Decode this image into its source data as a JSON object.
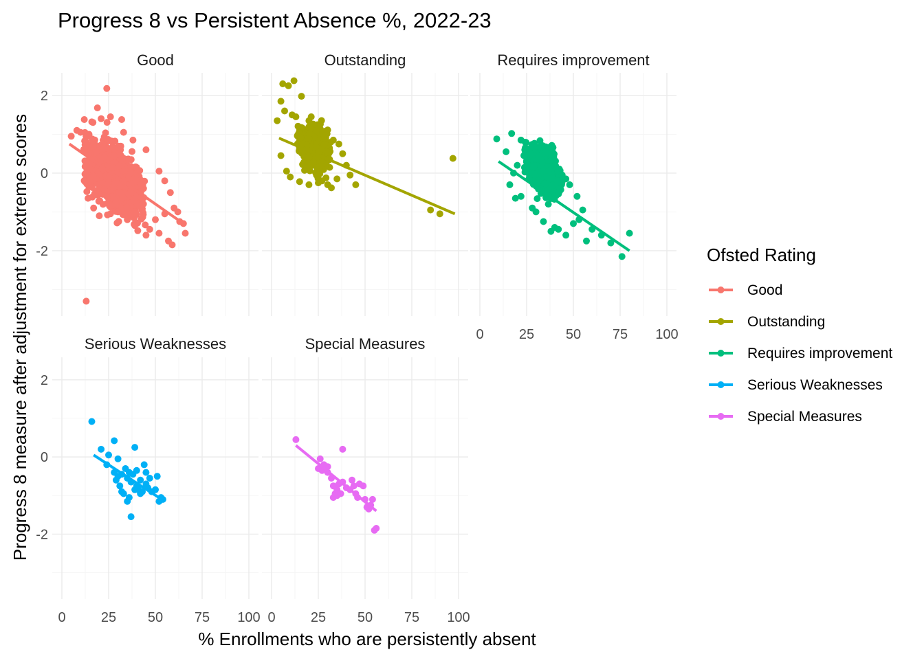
{
  "chart_data": {
    "type": "scatter",
    "title": "Progress 8 vs Persistent Absence %, 2022-23",
    "xlabel": "% Enrollments who are persistently absent",
    "ylabel": "Progress 8 measure after adjustment for extreme scores",
    "xlim": [
      0,
      100
    ],
    "ylim": [
      -3.4,
      2.3
    ],
    "x_ticks": [
      0,
      25,
      50,
      75,
      100
    ],
    "y_ticks": [
      -2,
      0,
      2
    ],
    "grid": true,
    "legend": {
      "title": "Ofsted Rating",
      "placement": "right",
      "entries": [
        "Good",
        "Outstanding",
        "Requires improvement",
        "Serious Weaknesses",
        "Special Measures"
      ]
    },
    "panels": [
      {
        "name": "Good",
        "color": "#F8766D",
        "trend": {
          "x0": 4,
          "y0": 0.75,
          "x1": 65,
          "y1": -1.3
        },
        "cloud": {
          "count": 1300,
          "x_range": [
            4,
            52
          ],
          "y_center_at_x0": 0.6,
          "slope": -0.03,
          "y_spread": 0.35,
          "seed": 11
        },
        "points": [
          [
            24,
            2.18
          ],
          [
            19,
            1.68
          ],
          [
            12,
            1.38
          ],
          [
            16,
            1.32
          ],
          [
            21,
            1.4
          ],
          [
            32,
            1.38
          ],
          [
            26,
            1.45
          ],
          [
            8,
            1.1
          ],
          [
            5,
            0.95
          ],
          [
            10,
            1.05
          ],
          [
            14,
            0.95
          ],
          [
            33,
            1.05
          ],
          [
            38,
            0.85
          ],
          [
            45,
            0.6
          ],
          [
            52,
            0.05
          ],
          [
            55,
            -0.2
          ],
          [
            58,
            -0.5
          ],
          [
            60,
            -0.9
          ],
          [
            62,
            -1.0
          ],
          [
            63,
            -1.25
          ],
          [
            65,
            -1.3
          ],
          [
            66,
            -1.55
          ],
          [
            57,
            -1.75
          ],
          [
            59,
            -1.85
          ],
          [
            52,
            -1.55
          ],
          [
            47,
            -1.45
          ],
          [
            45,
            -1.6
          ],
          [
            39,
            -1.35
          ],
          [
            35,
            -1.2
          ],
          [
            30,
            -1.0
          ],
          [
            26,
            -1.05
          ],
          [
            20,
            -1.1
          ],
          [
            17,
            -0.9
          ],
          [
            14,
            -0.65
          ],
          [
            55,
            -1.05
          ],
          [
            50,
            -1.2
          ],
          [
            13,
            -3.3
          ]
        ]
      },
      {
        "name": "Outstanding",
        "color": "#A3A500",
        "trend": {
          "x0": 4,
          "y0": 0.9,
          "x1": 98,
          "y1": -1.05
        },
        "cloud": {
          "count": 500,
          "x_range": [
            9,
            36
          ],
          "y_center_at_x0": 0.95,
          "slope": -0.022,
          "y_spread": 0.25,
          "seed": 23
        },
        "points": [
          [
            6,
            2.3
          ],
          [
            12,
            2.38
          ],
          [
            9,
            2.25
          ],
          [
            5,
            1.85
          ],
          [
            16,
            1.98
          ],
          [
            7,
            1.6
          ],
          [
            11,
            1.5
          ],
          [
            13,
            1.45
          ],
          [
            3,
            1.35
          ],
          [
            20,
            1.35
          ],
          [
            24,
            1.1
          ],
          [
            28,
            1.0
          ],
          [
            33,
            0.85
          ],
          [
            36,
            0.75
          ],
          [
            38,
            0.5
          ],
          [
            40,
            0.2
          ],
          [
            42,
            -0.05
          ],
          [
            35,
            -0.15
          ],
          [
            30,
            -0.3
          ],
          [
            25,
            -0.25
          ],
          [
            20,
            -0.3
          ],
          [
            15,
            -0.22
          ],
          [
            10,
            -0.1
          ],
          [
            8,
            0.05
          ],
          [
            5,
            0.45
          ],
          [
            27,
            -0.2
          ],
          [
            32,
            -0.38
          ],
          [
            85,
            -0.95
          ],
          [
            90,
            -1.05
          ],
          [
            97,
            0.38
          ],
          [
            45,
            -0.3
          ]
        ]
      },
      {
        "name": "Requires improvement",
        "color": "#00BF7D",
        "trend": {
          "x0": 10,
          "y0": 0.3,
          "x1": 80,
          "y1": -2.0
        },
        "cloud": {
          "count": 450,
          "x_range": [
            18,
            50
          ],
          "y_center_at_x0": 0.6,
          "slope": -0.03,
          "y_spread": 0.3,
          "seed": 37
        },
        "points": [
          [
            17,
            1.02
          ],
          [
            22,
            0.85
          ],
          [
            9,
            0.88
          ],
          [
            24,
            0.6
          ],
          [
            27,
            0.5
          ],
          [
            14,
            0.55
          ],
          [
            20,
            0.2
          ],
          [
            18,
            0.0
          ],
          [
            16,
            -0.3
          ],
          [
            19,
            -0.65
          ],
          [
            22,
            -0.6
          ],
          [
            30,
            -1.0
          ],
          [
            28,
            -0.9
          ],
          [
            34,
            -1.25
          ],
          [
            38,
            -1.5
          ],
          [
            40,
            -1.4
          ],
          [
            42,
            -1.45
          ],
          [
            46,
            -1.6
          ],
          [
            50,
            -1.3
          ],
          [
            53,
            -1.2
          ],
          [
            55,
            -0.95
          ],
          [
            57,
            -1.75
          ],
          [
            52,
            -0.6
          ],
          [
            48,
            -0.3
          ],
          [
            46,
            -0.15
          ],
          [
            44,
            -0.05
          ],
          [
            60,
            -1.45
          ],
          [
            65,
            -1.6
          ],
          [
            70,
            -1.8
          ],
          [
            76,
            -2.15
          ],
          [
            80,
            -1.55
          ]
        ]
      },
      {
        "name": "Serious Weaknesses",
        "color": "#00B0F6",
        "trend": {
          "x0": 17,
          "y0": 0.05,
          "x1": 55,
          "y1": -1.15
        },
        "cloud": null,
        "points": [
          [
            16,
            0.92
          ],
          [
            21,
            0.2
          ],
          [
            28,
            0.42
          ],
          [
            39,
            0.25
          ],
          [
            25,
            0.05
          ],
          [
            30,
            -0.05
          ],
          [
            24,
            -0.2
          ],
          [
            28,
            -0.4
          ],
          [
            30,
            -0.5
          ],
          [
            32,
            -0.45
          ],
          [
            34,
            -0.3
          ],
          [
            35,
            -0.55
          ],
          [
            36,
            -0.4
          ],
          [
            37,
            -0.65
          ],
          [
            38,
            -0.45
          ],
          [
            40,
            -0.75
          ],
          [
            41,
            -0.85
          ],
          [
            42,
            -0.6
          ],
          [
            43,
            -0.9
          ],
          [
            44,
            -0.2
          ],
          [
            45,
            -0.4
          ],
          [
            46,
            -0.8
          ],
          [
            47,
            -0.55
          ],
          [
            48,
            -0.9
          ],
          [
            50,
            -0.85
          ],
          [
            51,
            -0.5
          ],
          [
            52,
            -1.15
          ],
          [
            54,
            -1.1
          ],
          [
            53,
            -1.05
          ],
          [
            31,
            -0.75
          ],
          [
            33,
            -0.95
          ],
          [
            36,
            -1.05
          ],
          [
            37,
            -1.55
          ],
          [
            35,
            -1.15
          ],
          [
            39,
            -0.85
          ],
          [
            42,
            -0.95
          ],
          [
            45,
            -0.7
          ],
          [
            29,
            -0.6
          ],
          [
            32,
            -0.9
          ],
          [
            40,
            -0.35
          ]
        ]
      },
      {
        "name": "Special Measures",
        "color": "#E76BF3",
        "trend": {
          "x0": 13,
          "y0": 0.3,
          "x1": 56,
          "y1": -1.4
        },
        "cloud": null,
        "points": [
          [
            13,
            0.45
          ],
          [
            38,
            0.2
          ],
          [
            26,
            -0.05
          ],
          [
            25,
            -0.3
          ],
          [
            28,
            -0.2
          ],
          [
            30,
            -0.4
          ],
          [
            32,
            -0.55
          ],
          [
            33,
            -0.75
          ],
          [
            34,
            -0.95
          ],
          [
            35,
            -0.85
          ],
          [
            36,
            -0.7
          ],
          [
            37,
            -0.95
          ],
          [
            38,
            -0.65
          ],
          [
            40,
            -0.8
          ],
          [
            42,
            -0.85
          ],
          [
            43,
            -0.6
          ],
          [
            44,
            -0.75
          ],
          [
            45,
            -0.95
          ],
          [
            46,
            -1.05
          ],
          [
            47,
            -0.7
          ],
          [
            49,
            -0.75
          ],
          [
            50,
            -1.1
          ],
          [
            51,
            -1.3
          ],
          [
            52,
            -1.35
          ],
          [
            53,
            -1.25
          ],
          [
            54,
            -1.1
          ],
          [
            55,
            -1.9
          ],
          [
            56,
            -1.85
          ],
          [
            33,
            -1.05
          ],
          [
            35,
            -1.0
          ],
          [
            30,
            -0.25
          ],
          [
            27,
            -0.35
          ]
        ]
      }
    ]
  }
}
